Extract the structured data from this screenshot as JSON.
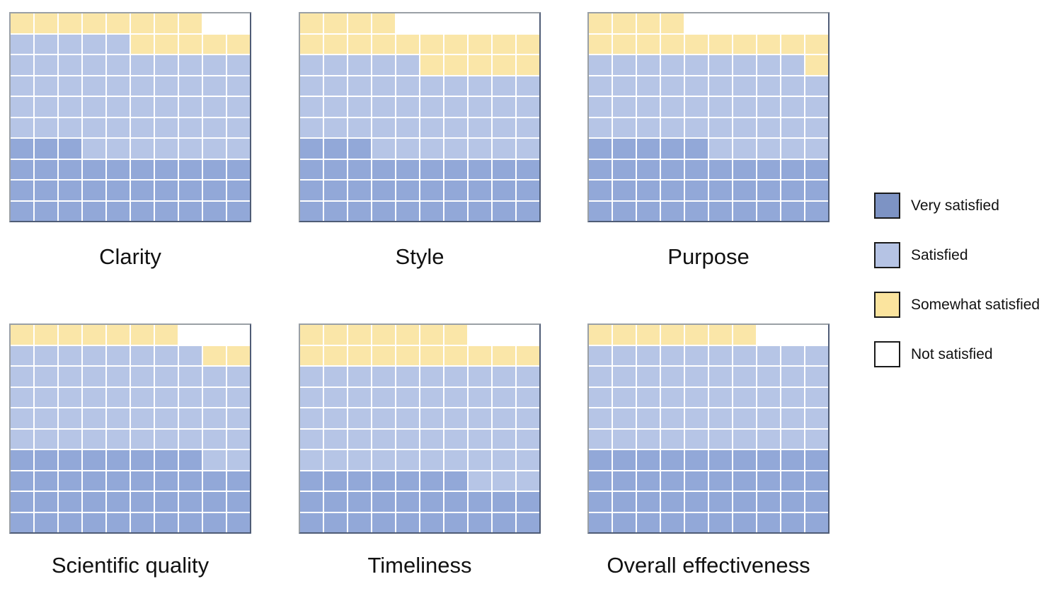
{
  "chart_data": {
    "type": "waffle",
    "unit": "percent_of_respondents",
    "grid_rows": 10,
    "grid_cols": 10,
    "fill_order": "bottom-left, left-to-right, bottom-to-top",
    "legend_position": "right-middle",
    "categories": [
      {
        "name": "Very satisfied",
        "cell_color": "#92a8d8",
        "legend_color": "#7d93c4"
      },
      {
        "name": "Satisfied",
        "cell_color": "#b6c5e6",
        "legend_color": "#b5c3e4"
      },
      {
        "name": "Somewhat satisfied",
        "cell_color": "#fae6a8",
        "legend_color": "#fbe49e"
      },
      {
        "name": "Not satisfied",
        "cell_color": "#ffffff",
        "legend_color": "#ffffff"
      }
    ],
    "charts": [
      {
        "title": "Clarity",
        "counts": [
          33,
          52,
          13,
          2
        ]
      },
      {
        "title": "Style",
        "counts": [
          33,
          42,
          19,
          6
        ]
      },
      {
        "title": "Purpose",
        "counts": [
          35,
          44,
          15,
          6
        ]
      },
      {
        "title": "Scientific quality",
        "counts": [
          38,
          50,
          9,
          3
        ]
      },
      {
        "title": "Timeliness",
        "counts": [
          27,
          53,
          17,
          3
        ]
      },
      {
        "title": "Overall effectiveness",
        "counts": [
          40,
          50,
          7,
          3
        ]
      }
    ]
  }
}
